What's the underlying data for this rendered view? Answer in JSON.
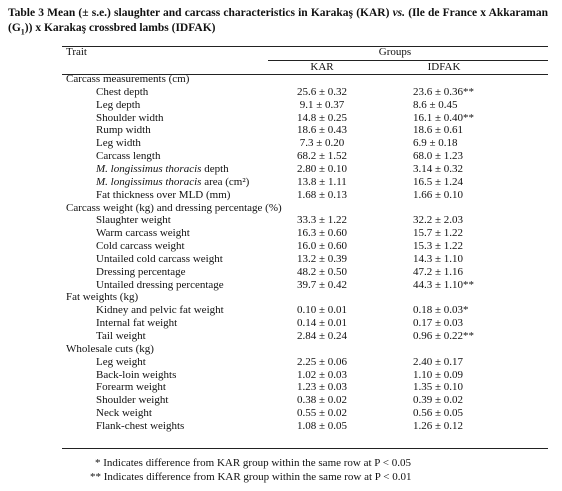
{
  "caption": {
    "label": "Table 3",
    "parts": [
      " Mean (± s.e.) slaughter and carcass characteristics in Karakaş (KAR) ",
      "vs.",
      " (Ile de France x Akkaraman (G",
      "1",
      ")) x Karakaş crossbred lambs (IDFAK)"
    ]
  },
  "table": {
    "header": {
      "trait": "Trait",
      "groups": "Groups",
      "columns": [
        "KAR",
        "IDFAK"
      ]
    },
    "sections": [
      {
        "title": "Carcass measurements (cm)",
        "rows": [
          {
            "trait": "Chest depth",
            "values": [
              "25.6 ± 0.32",
              "23.6 ± 0.36**"
            ]
          },
          {
            "trait": "Leg depth",
            "values": [
              "9.1 ± 0.37",
              "8.6 ± 0.45"
            ]
          },
          {
            "trait": "Shoulder width",
            "values": [
              "14.8 ± 0.25",
              "16.1 ± 0.40**"
            ]
          },
          {
            "trait": "Rump width",
            "values": [
              "18.6 ± 0.43",
              "18.6 ± 0.61"
            ]
          },
          {
            "trait": "Leg width",
            "values": [
              "7.3 ± 0.20",
              "6.9 ± 0.18"
            ]
          },
          {
            "trait": "Carcass length",
            "values": [
              "68.2 ± 1.52",
              "68.0 ± 1.23"
            ]
          },
          {
            "trait": {
              "italic": "M. longissimus thoracis",
              "text": " depth"
            },
            "values": [
              "2.80 ± 0.10",
              "3.14 ± 0.32"
            ]
          },
          {
            "trait": {
              "italic": "M. longissimus thoracis",
              "text": " area (cm²)"
            },
            "values": [
              "13.8 ± 1.11",
              "16.5 ± 1.24"
            ]
          },
          {
            "trait": "Fat thickness over MLD (mm)",
            "values": [
              "1.68 ± 0.13",
              "1.66 ± 0.10"
            ]
          }
        ]
      },
      {
        "title": "Carcass weight (kg) and dressing percentage (%)",
        "rows": [
          {
            "trait": "Slaughter weight",
            "values": [
              "33.3 ± 1.22",
              "32.2 ± 2.03"
            ]
          },
          {
            "trait": "Warm carcass weight",
            "values": [
              "16.3 ± 0.60",
              "15.7 ± 1.22"
            ]
          },
          {
            "trait": "Cold carcass weight",
            "values": [
              "16.0 ± 0.60",
              "15.3 ± 1.22"
            ]
          },
          {
            "trait": "Untailed cold carcass weight",
            "values": [
              "13.2 ± 0.39",
              "14.3 ± 1.10"
            ]
          },
          {
            "trait": "Dressing percentage",
            "values": [
              "48.2 ± 0.50",
              "47.2 ± 1.16"
            ]
          },
          {
            "trait": "Untailed dressing percentage",
            "values": [
              "39.7 ± 0.42",
              "44.3 ± 1.10**"
            ]
          }
        ]
      },
      {
        "title": "Fat weights (kg)",
        "rows": [
          {
            "trait": "Kidney and pelvic fat weight",
            "values": [
              "0.10 ± 0.01",
              "0.18 ± 0.03*"
            ]
          },
          {
            "trait": "Internal fat weight",
            "values": [
              "0.14 ± 0.01",
              "0.17 ± 0.03"
            ]
          },
          {
            "trait": "Tail weight",
            "values": [
              "2.84 ± 0.24",
              "0.96 ± 0.22**"
            ]
          }
        ]
      },
      {
        "title": "Wholesale cuts (kg)",
        "rows": [
          {
            "trait": "Leg weight",
            "values": [
              "2.25 ± 0.06",
              "2.40 ± 0.17"
            ]
          },
          {
            "trait": "Back-loin weights",
            "values": [
              "1.02 ± 0.03",
              "1.10 ± 0.09"
            ]
          },
          {
            "trait": "Forearm weight",
            "values": [
              "1.23 ± 0.03",
              "1.35 ± 0.10"
            ]
          },
          {
            "trait": "Shoulder weight",
            "values": [
              "0.38 ± 0.02",
              "0.39 ± 0.02"
            ]
          },
          {
            "trait": "Neck weight",
            "values": [
              "0.55 ± 0.02",
              "0.56 ± 0.05"
            ]
          },
          {
            "trait": "Flank-chest weights",
            "values": [
              "1.08 ± 0.05",
              "1.26 ± 0.12"
            ]
          }
        ]
      }
    ]
  },
  "footnotes": [
    "* Indicates difference from KAR group within the same row at P < 0.05",
    "** Indicates difference from KAR group within the same row at P < 0.01"
  ]
}
